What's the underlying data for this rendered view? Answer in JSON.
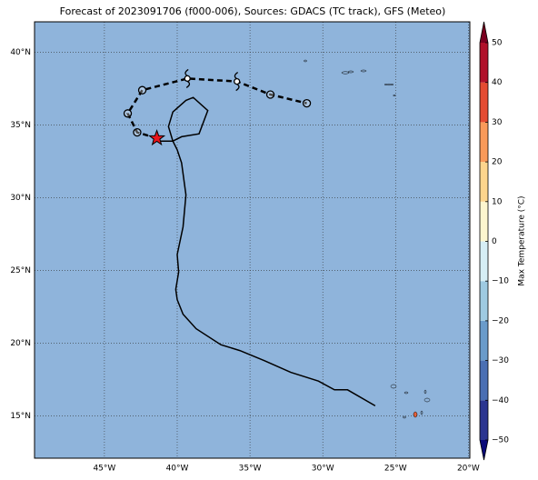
{
  "chart_data": {
    "type": "map",
    "title": "Forecast of 2023091706 (f000-006), Sources: GDACS (TC track), GFS (Meteo)",
    "xlim": [
      -49.8,
      -19.9
    ],
    "ylim": [
      12.1,
      42.1
    ],
    "xticks": [
      {
        "value": -45,
        "label": "45°W"
      },
      {
        "value": -40,
        "label": "40°W"
      },
      {
        "value": -35,
        "label": "35°W"
      },
      {
        "value": -30,
        "label": "30°W"
      },
      {
        "value": -25,
        "label": "25°W"
      },
      {
        "value": -20,
        "label": "20°W"
      }
    ],
    "yticks": [
      {
        "value": 15,
        "label": "15°N"
      },
      {
        "value": 20,
        "label": "20°N"
      },
      {
        "value": 25,
        "label": "25°N"
      },
      {
        "value": 30,
        "label": "30°N"
      },
      {
        "value": 35,
        "label": "35°N"
      },
      {
        "value": 40,
        "label": "40°N"
      }
    ],
    "grid": true,
    "background": "#8fb4db",
    "track": {
      "color": "#000000",
      "lon": [
        -41.4,
        -42.75,
        -43.4,
        -42.4,
        -39.3,
        -35.9,
        -33.6,
        -31.1
      ],
      "lat": [
        34.1,
        34.5,
        35.8,
        37.4,
        38.2,
        38.0,
        37.1,
        36.5
      ],
      "markers": [
        "star",
        "circle",
        "circle",
        "circle",
        "hurricane",
        "hurricane",
        "circle",
        "circle"
      ]
    },
    "contour": {
      "color": "#000000",
      "lon": [
        -41.2,
        -40.3,
        -40.6,
        -40.3,
        -39.4,
        -38.9,
        -37.9,
        -38.5,
        -39.7,
        -40.3,
        -40.0,
        -39.7,
        -39.4,
        -39.6,
        -40.0,
        -39.9,
        -40.1,
        -40.0,
        -39.6,
        -38.7,
        -37.0,
        -35.7,
        -34.0,
        -32.2,
        -30.3,
        -29.2,
        -28.3,
        -26.4
      ],
      "lat": [
        33.9,
        33.9,
        34.9,
        35.9,
        36.7,
        36.9,
        36.0,
        34.4,
        34.2,
        33.9,
        33.3,
        32.4,
        30.2,
        28.0,
        26.1,
        24.9,
        23.7,
        23.0,
        22.0,
        21.0,
        19.9,
        19.5,
        18.8,
        18.0,
        17.4,
        16.8,
        16.8,
        15.7
      ]
    },
    "colorbar": {
      "label": "Max Temperature (°C)",
      "ylim": [
        -50,
        50
      ],
      "ticks": [
        {
          "value": -50,
          "label": "−50"
        },
        {
          "value": -40,
          "label": "−40"
        },
        {
          "value": -30,
          "label": "−30"
        },
        {
          "value": -20,
          "label": "−20"
        },
        {
          "value": -10,
          "label": "−10"
        },
        0,
        10,
        20,
        30,
        40,
        50
      ],
      "colors": [
        "#2b3590",
        "#4a6fb3",
        "#6a9bca",
        "#9ecae1",
        "#d6eef5",
        "#fdf6cf",
        "#fdd58d",
        "#f99a5a",
        "#e44b32",
        "#b0112a"
      ],
      "under_color": "#0a0a78",
      "over_color": "#7a0020"
    }
  }
}
